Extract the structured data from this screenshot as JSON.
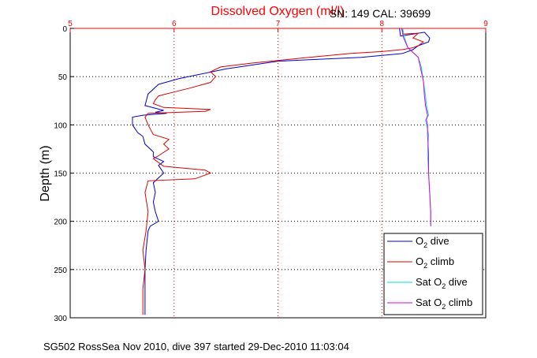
{
  "footer": "SG502 RossSea Nov 2010, dive 397 started 29-Dec-2010 11:03:04",
  "chart_data": {
    "type": "line",
    "title": "Dissolved Oxygen (ml/l)",
    "annotation": "SN: 149  CAL: 39699",
    "ylabel": "Depth (m)",
    "xlabel": "",
    "xlim": [
      5,
      9
    ],
    "ylim": [
      0,
      300
    ],
    "y_reversed": true,
    "x_axis_position": "top",
    "grid": true,
    "x_ticks": [
      "5",
      "6",
      "7",
      "8",
      "9"
    ],
    "y_ticks": [
      "0",
      "50",
      "100",
      "150",
      "200",
      "250",
      "300"
    ],
    "legend_position": "bottom-right",
    "legend": [
      {
        "prefix": "O",
        "sub": "2",
        "suffix": " dive"
      },
      {
        "prefix": "O",
        "sub": "2",
        "suffix": " climb"
      },
      {
        "prefix": "Sat O",
        "sub": "2",
        "suffix": " dive"
      },
      {
        "prefix": "Sat O",
        "sub": "2",
        "suffix": " climb"
      }
    ],
    "colors": {
      "o2_dive": "#0000cc",
      "o2_climb": "#dd0000",
      "sat_dive": "#00dddd",
      "sat_climb": "#dd00dd",
      "axis": "#ff0000",
      "grid": "#000000"
    },
    "series": [
      {
        "key": "o2_dive",
        "x": [
          8.17,
          8.18,
          8.41,
          8.46,
          8.45,
          8.35,
          8.3,
          8.2,
          7.8,
          7.0,
          6.5,
          6.05,
          5.85,
          5.75,
          5.72,
          5.9,
          5.82,
          5.93,
          5.7,
          5.6,
          5.6,
          5.65,
          5.7,
          5.72,
          5.8,
          5.8,
          5.9,
          5.85,
          5.9,
          5.8,
          5.82,
          5.8,
          5.82,
          5.85,
          5.77,
          5.75,
          5.73,
          5.72,
          5.72,
          5.72,
          5.72
        ],
        "y": [
          0,
          8,
          4,
          10,
          14,
          18,
          22,
          26,
          30,
          34,
          42,
          52,
          58,
          68,
          80,
          85,
          87,
          88,
          90,
          92,
          100,
          108,
          112,
          120,
          128,
          133,
          138,
          142,
          150,
          160,
          170,
          180,
          190,
          200,
          205,
          210,
          230,
          250,
          270,
          285,
          297
        ]
      },
      {
        "key": "o2_climb",
        "x": [
          8.2,
          8.2,
          8.35,
          8.3,
          8.4,
          8.35,
          8.3,
          8.2,
          8.0,
          7.7,
          7.3,
          6.75,
          6.45,
          6.35,
          6.4,
          6.35,
          6.15,
          6.0,
          5.85,
          5.82,
          5.8,
          5.9,
          6.35,
          6.3,
          5.75,
          5.72,
          5.75,
          5.8,
          5.95,
          5.9,
          5.95,
          5.85,
          5.8,
          5.9,
          6.3,
          6.35,
          6.2,
          5.75,
          5.72,
          5.75,
          5.73,
          5.7,
          5.72,
          5.7,
          5.7,
          5.7
        ],
        "y": [
          0,
          6,
          5,
          10,
          14,
          18,
          20,
          22,
          24,
          26,
          30,
          36,
          40,
          45,
          50,
          56,
          62,
          66,
          70,
          74,
          78,
          82,
          84,
          86,
          88,
          92,
          100,
          110,
          115,
          120,
          125,
          132,
          135,
          143,
          147,
          150,
          156,
          158,
          170,
          190,
          210,
          230,
          250,
          270,
          285,
          297
        ]
      },
      {
        "key": "sat_dive",
        "x": [
          8.2,
          8.22,
          8.25,
          8.3,
          8.35,
          8.38,
          8.4,
          8.42,
          8.43,
          8.45,
          8.42,
          8.43,
          8.45,
          8.44,
          8.45,
          8.46,
          8.47,
          8.47
        ],
        "y": [
          0,
          10,
          20,
          25,
          30,
          40,
          55,
          70,
          80,
          90,
          95,
          100,
          110,
          130,
          150,
          170,
          190,
          205
        ]
      },
      {
        "key": "sat_climb",
        "x": [
          8.19,
          8.21,
          8.25,
          8.3,
          8.35,
          8.37,
          8.4,
          8.41,
          8.42,
          8.44,
          8.43,
          8.44,
          8.44,
          8.45,
          8.45,
          8.46,
          8.47,
          8.47
        ],
        "y": [
          0,
          10,
          20,
          25,
          30,
          40,
          55,
          70,
          80,
          90,
          95,
          100,
          110,
          130,
          150,
          170,
          190,
          205
        ]
      }
    ]
  }
}
